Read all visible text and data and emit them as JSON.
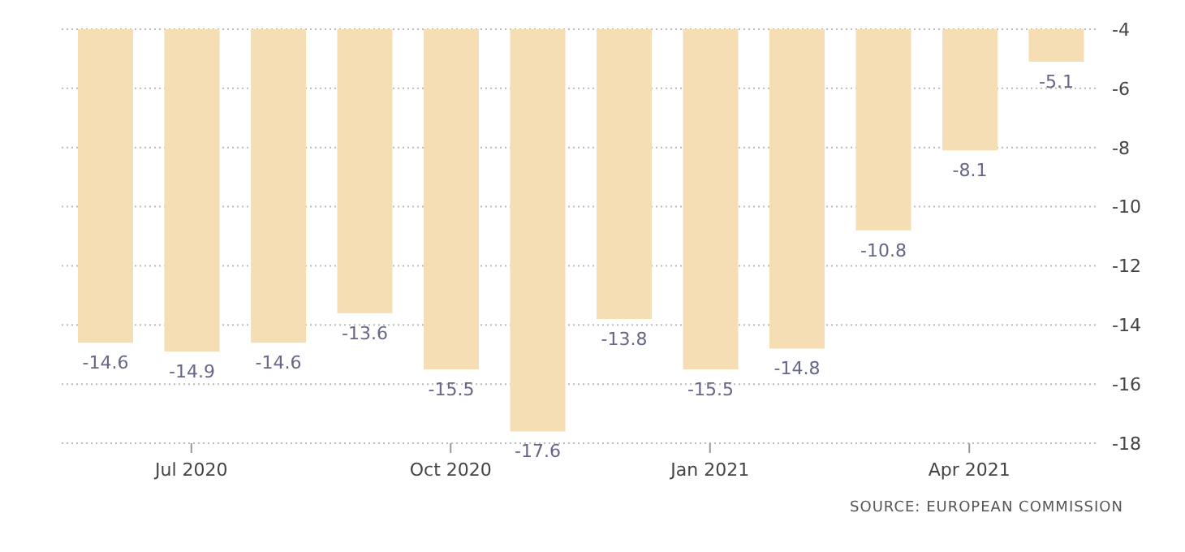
{
  "chart_data": {
    "type": "bar",
    "categories": [
      null,
      "Jul 2020",
      null,
      null,
      "Oct 2020",
      null,
      null,
      "Jan 2021",
      null,
      null,
      "Apr 2021",
      null
    ],
    "values": [
      -14.6,
      -14.9,
      -14.6,
      -13.6,
      -15.5,
      -17.6,
      -13.8,
      -15.5,
      -14.8,
      -10.8,
      -8.1,
      -5.1
    ],
    "color": "#f5deb3",
    "data_labels": true,
    "ylim": [
      -18,
      -4
    ],
    "yticks": [
      -18,
      -16,
      -14,
      -12,
      -10,
      -8,
      -6,
      -4
    ],
    "grid": "y",
    "annotations": [
      "SOURCE: EUROPEAN COMMISSION"
    ]
  }
}
